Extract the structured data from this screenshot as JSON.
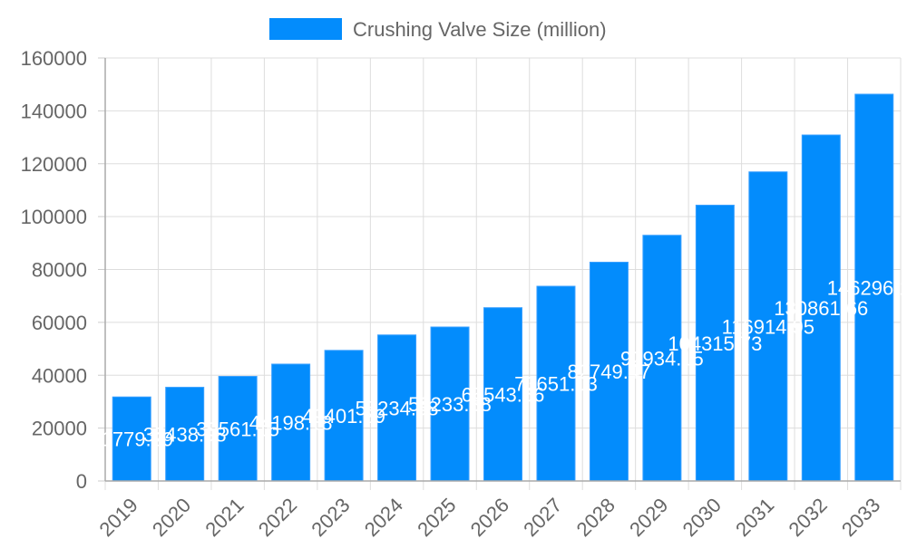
{
  "chart_data": {
    "type": "bar",
    "title": "",
    "xlabel": "",
    "ylabel": "",
    "legend": {
      "position": "top",
      "entries": [
        "Crushing Valve Size (million)"
      ]
    },
    "categories": [
      "2019",
      "2020",
      "2021",
      "2022",
      "2023",
      "2024",
      "2025",
      "2026",
      "2027",
      "2028",
      "2029",
      "2030",
      "2031",
      "2032",
      "2033"
    ],
    "series": [
      {
        "name": "Crushing Valve Size (million)",
        "color": "#038cfc",
        "values": [
          31779.29,
          35438.98,
          39561.15,
          44198.18,
          49401.29,
          55234.58,
          58233.38,
          65543.56,
          73651.03,
          82749.47,
          92934.15,
          104315.73,
          116914.95,
          130861.66,
          146296.16
        ]
      }
    ],
    "data_labels": [
      "31779.29",
      "35438.98",
      "39561.15",
      "44198.18",
      "49401.29",
      "55234.58",
      "58233.38",
      "65543.56",
      "73651.03",
      "82749.47",
      "92934.15",
      "104315.73",
      "116914.95",
      "130861.66",
      "146296.16"
    ],
    "ylim": [
      0,
      160000
    ],
    "yticks": [
      "0",
      "20000",
      "40000",
      "60000",
      "80000",
      "100000",
      "120000",
      "140000",
      "160000"
    ],
    "grid": true
  }
}
